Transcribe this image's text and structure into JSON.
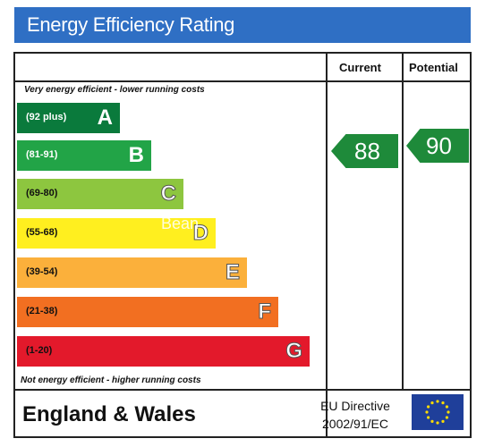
{
  "header": {
    "title": "Energy Efficiency Rating"
  },
  "columns": {
    "current": "Current",
    "potential": "Potential"
  },
  "notes": {
    "top": "Very energy efficient - lower running costs",
    "bottom": "Not energy efficient - higher running costs"
  },
  "bands": [
    {
      "range": "(92 plus)",
      "letter": "A",
      "color": "#0a7a3c",
      "text_color": "#ffffff"
    },
    {
      "range": "(81-91)",
      "letter": "B",
      "color": "#22a447",
      "text_color": "#ffffff"
    },
    {
      "range": "(69-80)",
      "letter": "C",
      "color": "#8dc63f",
      "text_color": "#111111"
    },
    {
      "range": "(55-68)",
      "letter": "D",
      "color": "#ffef1f",
      "text_color": "#111111"
    },
    {
      "range": "(39-54)",
      "letter": "E",
      "color": "#fbb03b",
      "text_color": "#111111"
    },
    {
      "range": "(21-38)",
      "letter": "F",
      "color": "#f26f21",
      "text_color": "#111111"
    },
    {
      "range": "(1-20)",
      "letter": "G",
      "color": "#e3192b",
      "text_color": "#111111"
    }
  ],
  "ratings": {
    "current": "88",
    "potential": "90",
    "arrow_color": "#1e8a3a"
  },
  "watermark": "Bean",
  "footer": {
    "region": "England & Wales",
    "directive_line1": "EU Directive",
    "directive_line2": "2002/91/EC"
  },
  "icons": {
    "eu_flag": "eu-flag-icon"
  }
}
